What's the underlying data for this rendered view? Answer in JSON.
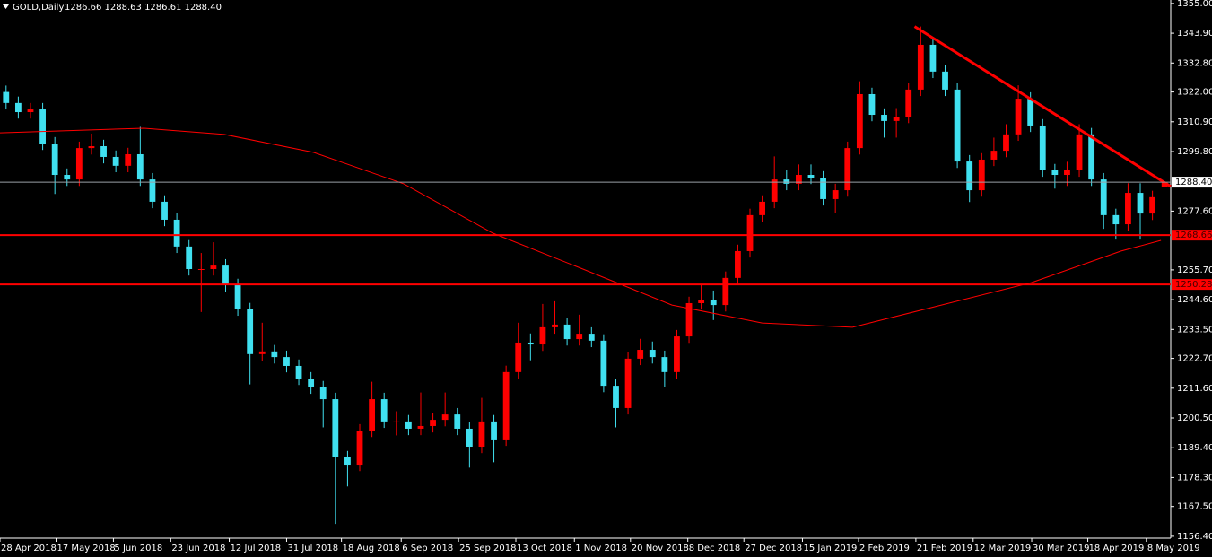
{
  "chart_data": {
    "type": "candlestick",
    "title": "GOLD,Daily",
    "subtitle": "1286.66 1288.63 1286.61 1288.40",
    "open": [
      1322.0,
      1317.9,
      1314.5,
      1315.5,
      1302.8,
      1291.1,
      1289.4,
      1301.1,
      1301.8,
      1297.8,
      1294.5,
      1298.8,
      1289.4,
      1281.1,
      1274.4,
      1264.4,
      1256.0,
      1256.0,
      1257.3,
      1250.0,
      1241.0,
      1224.3,
      1225.3,
      1223.2,
      1219.9,
      1215.2,
      1211.9,
      1207.5,
      1185.8,
      1183.1,
      1195.8,
      1207.5,
      1199.2,
      1199.2,
      1196.5,
      1197.5,
      1199.8,
      1201.8,
      1196.5,
      1189.8,
      1199.2,
      1192.5,
      1217.6,
      1228.6,
      1227.9,
      1234.3,
      1235.3,
      1229.9,
      1231.9,
      1229.3,
      1212.5,
      1204.2,
      1222.6,
      1225.9,
      1223.2,
      1217.6,
      1230.9,
      1243.3,
      1244.3,
      1242.6,
      1252.7,
      1262.7,
      1276.1,
      1281.1,
      1289.4,
      1287.8,
      1291.1,
      1290.1,
      1282.1,
      1285.4,
      1301.1,
      1321.2,
      1313.5,
      1311.2,
      1312.8,
      1322.9,
      1339.6,
      1329.6,
      1322.9,
      1296.1,
      1285.4,
      1296.8,
      1300.1,
      1306.2,
      1319.5,
      1309.5,
      1292.8,
      1291.1,
      1292.8,
      1306.2,
      1289.4,
      1276.1,
      1272.7,
      1284.4,
      1276.7,
      1286.66
    ],
    "high": [
      1324.4,
      1320.3,
      1317.9,
      1317.9,
      1305.2,
      1293.5,
      1303.5,
      1306.5,
      1304.2,
      1300.2,
      1301.2,
      1309.0,
      1291.8,
      1283.5,
      1276.8,
      1266.8,
      1262.0,
      1266.0,
      1259.7,
      1252.4,
      1243.4,
      1236.0,
      1227.7,
      1225.6,
      1222.3,
      1217.6,
      1214.3,
      1209.9,
      1188.2,
      1198.2,
      1214.0,
      1209.9,
      1203.0,
      1201.6,
      1210.0,
      1202.2,
      1210.0,
      1204.2,
      1198.9,
      1208.0,
      1201.6,
      1220.0,
      1236.0,
      1232.0,
      1243.0,
      1244.0,
      1237.7,
      1239.0,
      1234.3,
      1231.7,
      1214.9,
      1225.0,
      1230.0,
      1229.0,
      1225.6,
      1233.3,
      1245.7,
      1250.0,
      1248.0,
      1255.1,
      1265.1,
      1278.5,
      1283.5,
      1298.0,
      1293.0,
      1295.0,
      1295.0,
      1292.5,
      1287.8,
      1303.5,
      1326.0,
      1323.6,
      1315.9,
      1316.0,
      1325.3,
      1346.4,
      1342.0,
      1332.0,
      1325.3,
      1298.5,
      1299.2,
      1305.0,
      1310.0,
      1324.5,
      1321.9,
      1311.9,
      1295.2,
      1296.0,
      1310.0,
      1308.6,
      1291.8,
      1278.5,
      1288.0,
      1288.0,
      1285.2,
      1288.63
    ],
    "low": [
      1315.5,
      1312.1,
      1312.1,
      1300.4,
      1284.0,
      1287.0,
      1287.0,
      1298.7,
      1295.4,
      1292.1,
      1292.1,
      1287.0,
      1278.7,
      1272.0,
      1262.0,
      1253.6,
      1240.0,
      1253.6,
      1247.6,
      1238.6,
      1213.0,
      1221.9,
      1220.8,
      1217.5,
      1212.8,
      1209.5,
      1197.0,
      1161.0,
      1175.0,
      1180.7,
      1193.4,
      1196.8,
      1194.0,
      1194.1,
      1194.1,
      1195.1,
      1197.4,
      1194.1,
      1182.0,
      1187.4,
      1184.0,
      1190.1,
      1215.2,
      1222.0,
      1225.5,
      1231.9,
      1227.5,
      1227.5,
      1226.9,
      1210.1,
      1197.0,
      1201.8,
      1220.2,
      1220.8,
      1212.0,
      1215.2,
      1228.5,
      1240.9,
      1237.0,
      1240.2,
      1250.3,
      1260.3,
      1273.7,
      1278.7,
      1285.4,
      1285.4,
      1287.7,
      1279.7,
      1277.0,
      1283.0,
      1298.7,
      1311.1,
      1305.0,
      1305.0,
      1310.4,
      1320.5,
      1327.2,
      1320.5,
      1293.7,
      1281.0,
      1283.0,
      1294.4,
      1297.7,
      1303.8,
      1307.1,
      1290.4,
      1286.0,
      1287.0,
      1290.4,
      1287.0,
      1271.0,
      1267.0,
      1270.3,
      1267.0,
      1274.3,
      1286.61
    ],
    "close": [
      1317.9,
      1314.5,
      1315.5,
      1302.8,
      1291.1,
      1289.4,
      1301.1,
      1301.8,
      1297.8,
      1294.5,
      1298.8,
      1289.4,
      1281.1,
      1274.4,
      1264.4,
      1256.0,
      1256.0,
      1257.3,
      1250.0,
      1241.0,
      1224.3,
      1225.3,
      1223.2,
      1219.9,
      1215.2,
      1211.9,
      1207.5,
      1185.8,
      1183.1,
      1195.8,
      1207.5,
      1199.2,
      1199.2,
      1196.5,
      1197.5,
      1199.8,
      1201.8,
      1196.5,
      1189.8,
      1199.2,
      1192.5,
      1217.6,
      1228.6,
      1227.9,
      1234.3,
      1235.3,
      1229.9,
      1231.9,
      1229.3,
      1212.5,
      1204.2,
      1222.6,
      1225.9,
      1223.2,
      1217.6,
      1230.9,
      1243.3,
      1244.3,
      1242.6,
      1252.7,
      1262.7,
      1276.1,
      1281.1,
      1289.4,
      1287.8,
      1291.1,
      1290.1,
      1282.1,
      1285.4,
      1301.1,
      1321.2,
      1313.5,
      1311.2,
      1312.8,
      1322.9,
      1339.6,
      1329.6,
      1322.9,
      1296.1,
      1285.4,
      1296.8,
      1300.1,
      1306.2,
      1319.5,
      1309.5,
      1292.8,
      1291.1,
      1292.8,
      1306.2,
      1289.4,
      1276.1,
      1272.7,
      1284.4,
      1276.7,
      1282.8,
      1288.4
    ],
    "up_color": "#ff0000",
    "down_color": "#40e0f0",
    "xlim": [
      0,
      96
    ],
    "xticks": [
      {
        "value": 0,
        "label": "28 Apr 2018"
      },
      {
        "value": 4.6,
        "label": "17 May 2018"
      },
      {
        "value": 9.3,
        "label": "5 Jun 2018"
      },
      {
        "value": 14,
        "label": "23 Jun 2018"
      },
      {
        "value": 18.8,
        "label": "12 Jul 2018"
      },
      {
        "value": 23.5,
        "label": "31 Jul 2018"
      },
      {
        "value": 28,
        "label": "18 Aug 2018"
      },
      {
        "value": 32.9,
        "label": "6 Sep 2018"
      },
      {
        "value": 37.6,
        "label": "25 Sep 2018"
      },
      {
        "value": 42.3,
        "label": "13 Oct 2018"
      },
      {
        "value": 47.1,
        "label": "1 Nov 2018"
      },
      {
        "value": 51.7,
        "label": "20 Nov 2018"
      },
      {
        "value": 56.4,
        "label": "8 Dec 2018"
      },
      {
        "value": 61,
        "label": "27 Dec 2018"
      },
      {
        "value": 65.8,
        "label": "15 Jan 2019"
      },
      {
        "value": 70.4,
        "label": "2 Feb 2019"
      },
      {
        "value": 75.1,
        "label": "21 Feb 2019"
      },
      {
        "value": 79.8,
        "label": "12 Mar 2019"
      },
      {
        "value": 84.6,
        "label": "30 Mar 2019"
      },
      {
        "value": 89.2,
        "label": "18 Apr 2019"
      },
      {
        "value": 94,
        "label": "8 May 2019"
      }
    ],
    "ylim": [
      1155.7,
      1356.3
    ],
    "yticks": [
      {
        "value": 1355,
        "label": "1355.00"
      },
      {
        "value": 1343.9,
        "label": "1343.90"
      },
      {
        "value": 1332.8,
        "label": "1332.80"
      },
      {
        "value": 1322,
        "label": "1322.00"
      },
      {
        "value": 1310.9,
        "label": "1310.90"
      },
      {
        "value": 1299.8,
        "label": "1299.80"
      },
      {
        "value": 1277.6,
        "label": "1277.60"
      },
      {
        "value": 1255.7,
        "label": "1255.70"
      },
      {
        "value": 1244.6,
        "label": "1244.60"
      },
      {
        "value": 1233.5,
        "label": "1233.50"
      },
      {
        "value": 1222.7,
        "label": "1222.70"
      },
      {
        "value": 1211.6,
        "label": "1211.60"
      },
      {
        "value": 1200.5,
        "label": "1200.50"
      },
      {
        "value": 1189.4,
        "label": "1189.40"
      },
      {
        "value": 1178.3,
        "label": "1178.30"
      },
      {
        "value": 1167.5,
        "label": "1167.50"
      },
      {
        "value": 1156.4,
        "label": "1156.40"
      }
    ],
    "grid": false,
    "ma": {
      "color": "#ff0000",
      "x": [
        0,
        11.8,
        18.4,
        25.7,
        33.1,
        40.4,
        47.8,
        55.1,
        62.5,
        69.9,
        77.2,
        84.6,
        91.9,
        95.2
      ],
      "values": [
        1306.8,
        1308.5,
        1306.2,
        1299.5,
        1287.8,
        1269.4,
        1256.0,
        1242.6,
        1235.9,
        1234.3,
        1242.6,
        1251.0,
        1262.7,
        1266.7
      ]
    },
    "trendline": {
      "color": "#ff0000",
      "x": [
        75,
        96
      ],
      "values": [
        1346.4,
        1286.8
      ]
    },
    "hlines": [
      {
        "value": 1268.66,
        "color": "#ff0000"
      },
      {
        "value": 1250.28,
        "color": "#ff0000"
      }
    ],
    "last_price": {
      "value": 1288.4,
      "label": "1288.40",
      "color": "#9aa0a6"
    }
  }
}
